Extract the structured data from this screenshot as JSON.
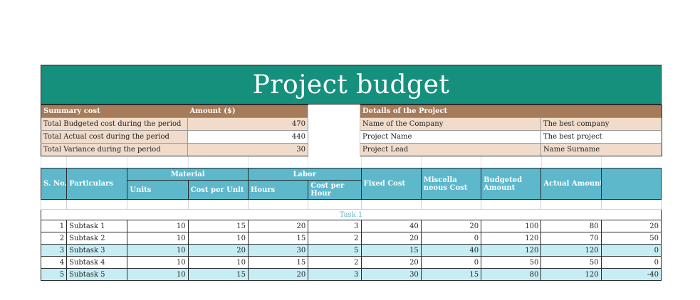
{
  "title": "Project budget",
  "summary": {
    "header_left": "Summary cost",
    "header_amount": "Amount ($)",
    "header_right": "Details of the Project",
    "rows": [
      {
        "label": "Total Budgeted cost during the period",
        "value": "470",
        "detail_label": "Name of the Company",
        "detail_value": "The best company"
      },
      {
        "label": "Total Actual cost during the period",
        "value": "440",
        "detail_label": "Project Name",
        "detail_value": "The best project"
      },
      {
        "label": "Total Variance during the period",
        "value": "30",
        "detail_label": "Project Lead",
        "detail_value": "Name Surname"
      }
    ]
  },
  "table": {
    "col_sno": "S. No.",
    "col_particulars": "Particulars",
    "group_material": "Material",
    "group_labor": "Labor",
    "col_units": "Units",
    "col_cost_per_unit": "Cost per Unit",
    "col_hours": "Hours",
    "col_cost_per_hour": "Cost per Hour",
    "col_fixed_cost": "Fixed Cost",
    "col_misc_cost": "Miscella neous Cost",
    "col_budgeted_amount": "Budgeted Amount",
    "col_actual_amount": "Actual Amount\\",
    "col_variance": "",
    "task_label": "Task 1",
    "rows": [
      {
        "sno": "1",
        "name": "Subtask 1",
        "units": "10",
        "cpu": "15",
        "hours": "20",
        "cph": "3",
        "fixed": "40",
        "misc": "20",
        "budget": "100",
        "actual": "80",
        "variance": "20"
      },
      {
        "sno": "2",
        "name": "Subtask 2",
        "units": "10",
        "cpu": "10",
        "hours": "15",
        "cph": "2",
        "fixed": "20",
        "misc": "0",
        "budget": "120",
        "actual": "70",
        "variance": "50"
      },
      {
        "sno": "3",
        "name": "Subtask 3",
        "units": "10",
        "cpu": "20",
        "hours": "30",
        "cph": "5",
        "fixed": "15",
        "misc": "40",
        "budget": "120",
        "actual": "120",
        "variance": "0"
      },
      {
        "sno": "4",
        "name": "Subtask 4",
        "units": "10",
        "cpu": "10",
        "hours": "15",
        "cph": "2",
        "fixed": "20",
        "misc": "0",
        "budget": "50",
        "actual": "50",
        "variance": "0"
      },
      {
        "sno": "5",
        "name": "Subtask 5",
        "units": "10",
        "cpu": "15",
        "hours": "20",
        "cph": "3",
        "fixed": "30",
        "misc": "15",
        "budget": "80",
        "actual": "120",
        "variance": "-40"
      }
    ]
  },
  "colors": {
    "title_bg": "#15907d",
    "summary_header": "#a57b5a",
    "summary_fill": "#f1dccb",
    "table_header": "#5db8cc",
    "row_alt": "#c7edf4"
  }
}
